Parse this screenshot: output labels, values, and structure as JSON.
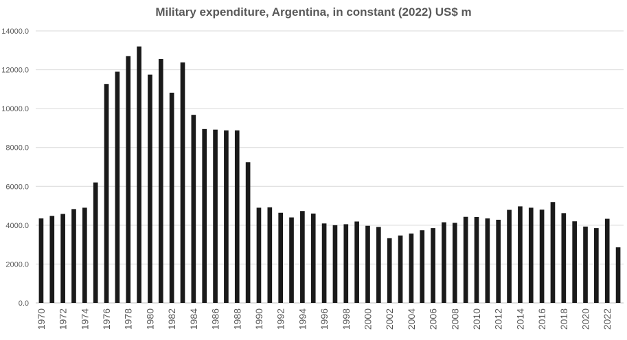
{
  "chart_data": {
    "type": "bar",
    "title": "Military expenditure, Argentina, in constant (2022) US$ m",
    "xlabel": "",
    "ylabel": "",
    "ylim": [
      0,
      14000
    ],
    "yticks": [
      "0.0",
      "2000.0",
      "4000.0",
      "6000.0",
      "8000.0",
      "10000.0",
      "12000.0",
      "14000.0"
    ],
    "grid": true,
    "bar_color": "#1a1a1a",
    "grid_color": "#d9d9d9",
    "categories": [
      "1970",
      "1971",
      "1972",
      "1973",
      "1974",
      "1975",
      "1976",
      "1977",
      "1978",
      "1979",
      "1980",
      "1981",
      "1982",
      "1983",
      "1984",
      "1985",
      "1986",
      "1987",
      "1988",
      "1989",
      "1990",
      "1991",
      "1992",
      "1993",
      "1994",
      "1995",
      "1996",
      "1997",
      "1998",
      "1999",
      "2000",
      "2001",
      "2002",
      "2003",
      "2004",
      "2005",
      "2006",
      "2007",
      "2008",
      "2009",
      "2010",
      "2011",
      "2012",
      "2013",
      "2014",
      "2015",
      "2016",
      "2017",
      "2018",
      "2019",
      "2020",
      "2021",
      "2022",
      "2023"
    ],
    "x_tick_labels": [
      "1970",
      "",
      "1972",
      "",
      "1974",
      "",
      "1976",
      "",
      "1978",
      "",
      "1980",
      "",
      "1982",
      "",
      "1984",
      "",
      "1986",
      "",
      "1988",
      "",
      "1990",
      "",
      "1992",
      "",
      "1994",
      "",
      "1996",
      "",
      "1998",
      "",
      "2000",
      "",
      "2002",
      "",
      "2004",
      "",
      "2006",
      "",
      "2008",
      "",
      "2010",
      "",
      "2012",
      "",
      "2014",
      "",
      "2016",
      "",
      "2018",
      "",
      "2020",
      "",
      "2022",
      ""
    ],
    "values": [
      4350,
      4480,
      4580,
      4830,
      4900,
      6200,
      11270,
      11900,
      12700,
      13200,
      11750,
      12550,
      10820,
      12380,
      9680,
      8950,
      8920,
      8880,
      8880,
      7240,
      4900,
      4920,
      4640,
      4400,
      4730,
      4600,
      4090,
      4000,
      4050,
      4190,
      3970,
      3910,
      3330,
      3470,
      3570,
      3740,
      3850,
      4150,
      4120,
      4430,
      4420,
      4350,
      4280,
      4790,
      4970,
      4900,
      4800,
      5190,
      4620,
      4200,
      3930,
      3850,
      4330,
      2860
    ]
  }
}
